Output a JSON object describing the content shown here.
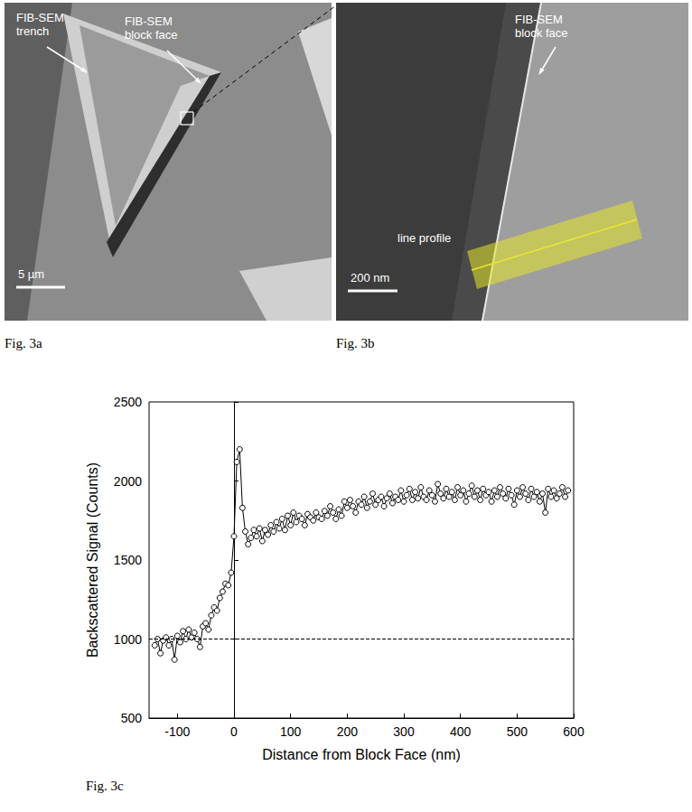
{
  "panels": {
    "a": {
      "caption": "Fig. 3a",
      "labels": [
        "FIB-SEM trench",
        "FIB-SEM block face"
      ],
      "scale_bar": "5 µm"
    },
    "b": {
      "caption": "Fig. 3b",
      "labels": [
        "FIB-SEM block face",
        "line profile"
      ],
      "scale_bar": "200 nm"
    },
    "c": {
      "caption": "Fig. 3c"
    }
  },
  "chart_data": {
    "type": "line",
    "x_label": "Distance from Block Face (nm)",
    "y_label": "Backscattered Signal (Counts)",
    "x": [
      -140,
      -135,
      -130,
      -125,
      -120,
      -115,
      -110,
      -105,
      -100,
      -95,
      -90,
      -85,
      -80,
      -75,
      -70,
      -65,
      -60,
      -55,
      -50,
      -45,
      -40,
      -35,
      -30,
      -25,
      -20,
      -15,
      -10,
      -5,
      0,
      5,
      10,
      15,
      20,
      25,
      30,
      35,
      40,
      45,
      50,
      55,
      60,
      65,
      70,
      75,
      80,
      85,
      90,
      95,
      100,
      105,
      110,
      115,
      120,
      125,
      130,
      135,
      140,
      145,
      150,
      155,
      160,
      165,
      170,
      175,
      180,
      185,
      190,
      195,
      200,
      205,
      210,
      215,
      220,
      225,
      230,
      235,
      240,
      245,
      250,
      255,
      260,
      265,
      270,
      275,
      280,
      285,
      290,
      295,
      300,
      305,
      310,
      315,
      320,
      325,
      330,
      335,
      340,
      345,
      350,
      355,
      360,
      365,
      370,
      375,
      380,
      385,
      390,
      395,
      400,
      405,
      410,
      415,
      420,
      425,
      430,
      435,
      440,
      445,
      450,
      455,
      460,
      465,
      470,
      475,
      480,
      485,
      490,
      495,
      500,
      505,
      510,
      515,
      520,
      525,
      530,
      535,
      540,
      545,
      550,
      555,
      560,
      565,
      570,
      575,
      580,
      585,
      590
    ],
    "values": [
      960,
      1000,
      910,
      990,
      1010,
      960,
      1000,
      870,
      1020,
      980,
      1050,
      1000,
      1060,
      1010,
      1040,
      1000,
      950,
      1080,
      1100,
      1060,
      1150,
      1200,
      1180,
      1260,
      1300,
      1350,
      1340,
      1420,
      1650,
      2120,
      2200,
      1830,
      1680,
      1600,
      1640,
      1690,
      1650,
      1700,
      1620,
      1690,
      1660,
      1720,
      1680,
      1740,
      1700,
      1760,
      1690,
      1780,
      1720,
      1800,
      1740,
      1780,
      1760,
      1720,
      1790,
      1770,
      1750,
      1800,
      1770,
      1760,
      1810,
      1780,
      1840,
      1800,
      1760,
      1820,
      1780,
      1870,
      1830,
      1880,
      1840,
      1800,
      1870,
      1850,
      1900,
      1830,
      1870,
      1920,
      1850,
      1880,
      1900,
      1840,
      1890,
      1920,
      1860,
      1900,
      1880,
      1940,
      1870,
      1910,
      1950,
      1880,
      1930,
      1890,
      1960,
      1900,
      1880,
      1940,
      1910,
      1870,
      1980,
      1920,
      1890,
      1950,
      1900,
      1930,
      1880,
      1960,
      1910,
      1940,
      1870,
      1920,
      1970,
      1900,
      1940,
      1880,
      1950,
      1910,
      1930,
      1870,
      1940,
      1900,
      1960,
      1920,
      1890,
      1950,
      1910,
      1850,
      1940,
      1900,
      1960,
      1920,
      1880,
      1950,
      1900,
      1930,
      1870,
      1920,
      1800,
      1950,
      1900,
      1940,
      1890,
      1920,
      1960,
      1900,
      1940
    ],
    "color": "#000000",
    "marker": "circle",
    "line_style": "solid",
    "reference_line": 1000,
    "xlim": [
      -150,
      600
    ],
    "xticks": [
      -100,
      0,
      100,
      200,
      300,
      400,
      500,
      600
    ],
    "ylim": [
      500,
      2500
    ],
    "yticks": [
      500,
      1000,
      1500,
      2000,
      2500
    ],
    "grid": false
  }
}
